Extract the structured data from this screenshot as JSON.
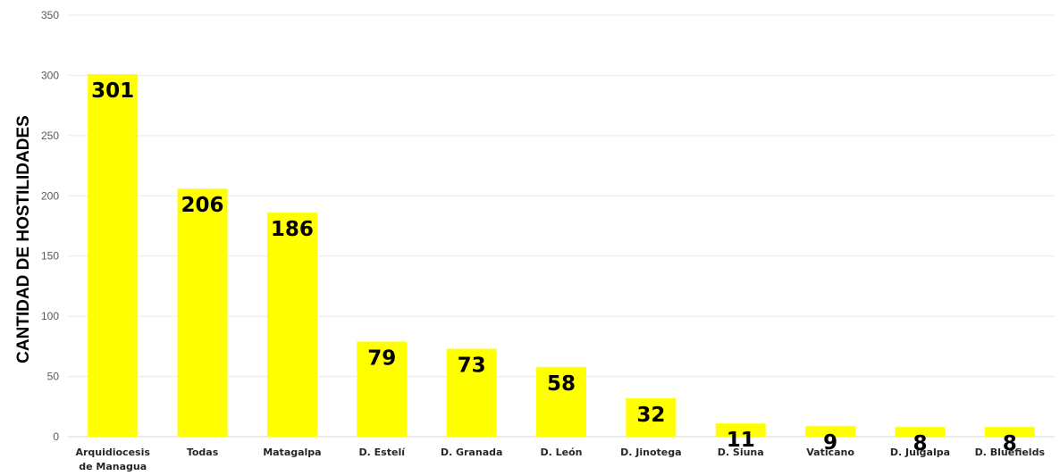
{
  "chart_data": {
    "type": "bar",
    "title": "",
    "xlabel": "",
    "ylabel": "CANTIDAD DE HOSTILIDADES",
    "ylim": [
      0,
      350
    ],
    "yticks": [
      0,
      50,
      100,
      150,
      200,
      250,
      300,
      350
    ],
    "grid": true,
    "legend": "none",
    "categories": [
      [
        "Arquidiocesis",
        "de Managua"
      ],
      [
        "Todas"
      ],
      [
        "Matagalpa"
      ],
      [
        "D. Estelí"
      ],
      [
        "D. Granada"
      ],
      [
        "D. León"
      ],
      [
        "D. Jinotega"
      ],
      [
        "D. Siuna"
      ],
      [
        "Vaticano"
      ],
      [
        "D. Juigalpa"
      ],
      [
        "D. Bluefields"
      ]
    ],
    "values": [
      301,
      206,
      186,
      79,
      73,
      58,
      32,
      11,
      9,
      8,
      8
    ],
    "colors": {
      "bar": "#FFFF00",
      "grid": "#eaeaea",
      "axis": "#d9d9d9"
    }
  }
}
